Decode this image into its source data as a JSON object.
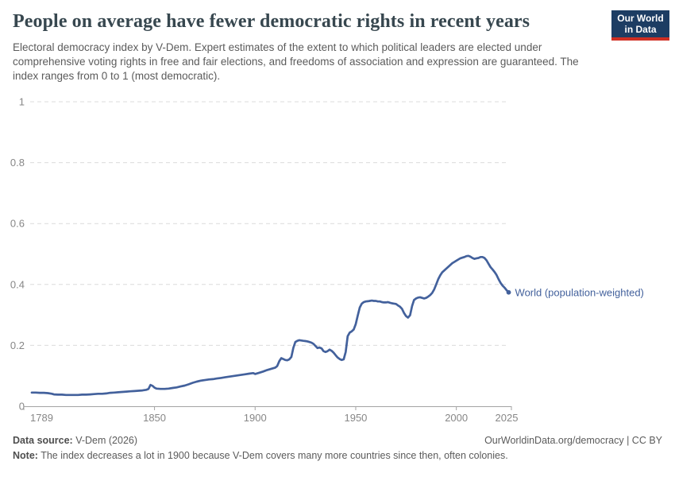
{
  "header": {
    "title": "People on average have fewer democratic rights in recent years",
    "subtitle": "Electoral democracy index by V-Dem. Expert estimates of the extent to which political leaders are elected under comprehensive voting rights in free and fair elections, and freedoms of association and expression are guaranteed. The index ranges from 0 to 1 (most democratic).",
    "logo": {
      "line1": "Our World",
      "line2": "in Data",
      "bg_color": "#1d3d63",
      "accent_color": "#cf2f23"
    }
  },
  "chart_data": {
    "type": "line",
    "title": "People on average have fewer democratic rights in recent years",
    "xlabel": "",
    "ylabel": "Electoral democracy index",
    "xlim": [
      1789,
      2026
    ],
    "ylim": [
      0,
      1
    ],
    "x_ticks": [
      1789,
      1850,
      1900,
      1950,
      2000,
      2025
    ],
    "y_ticks": [
      0,
      0.2,
      0.4,
      0.6,
      0.8,
      1
    ],
    "grid": "horizontal-dashed",
    "legend_position": "end-of-line-label",
    "colors": {
      "line": "#43619c",
      "grid": "#dcdcdc",
      "axis": "#a3a3a3",
      "tick_label": "#878787"
    },
    "series": [
      {
        "name": "World (population-weighted)",
        "color": "#43619c",
        "points": [
          [
            1789,
            0.045
          ],
          [
            1791,
            0.045
          ],
          [
            1793,
            0.044
          ],
          [
            1795,
            0.044
          ],
          [
            1797,
            0.043
          ],
          [
            1799,
            0.041
          ],
          [
            1800,
            0.039
          ],
          [
            1802,
            0.038
          ],
          [
            1804,
            0.038
          ],
          [
            1806,
            0.037
          ],
          [
            1808,
            0.037
          ],
          [
            1810,
            0.037
          ],
          [
            1812,
            0.037
          ],
          [
            1814,
            0.038
          ],
          [
            1816,
            0.038
          ],
          [
            1818,
            0.039
          ],
          [
            1820,
            0.04
          ],
          [
            1822,
            0.041
          ],
          [
            1824,
            0.041
          ],
          [
            1826,
            0.042
          ],
          [
            1828,
            0.044
          ],
          [
            1830,
            0.045
          ],
          [
            1832,
            0.046
          ],
          [
            1834,
            0.047
          ],
          [
            1836,
            0.048
          ],
          [
            1838,
            0.049
          ],
          [
            1840,
            0.05
          ],
          [
            1842,
            0.051
          ],
          [
            1844,
            0.052
          ],
          [
            1846,
            0.054
          ],
          [
            1847,
            0.057
          ],
          [
            1848,
            0.07
          ],
          [
            1849,
            0.067
          ],
          [
            1850,
            0.061
          ],
          [
            1851,
            0.058
          ],
          [
            1853,
            0.057
          ],
          [
            1855,
            0.057
          ],
          [
            1857,
            0.058
          ],
          [
            1859,
            0.06
          ],
          [
            1861,
            0.062
          ],
          [
            1863,
            0.065
          ],
          [
            1865,
            0.068
          ],
          [
            1867,
            0.072
          ],
          [
            1869,
            0.077
          ],
          [
            1871,
            0.081
          ],
          [
            1873,
            0.084
          ],
          [
            1875,
            0.086
          ],
          [
            1877,
            0.088
          ],
          [
            1879,
            0.089
          ],
          [
            1881,
            0.091
          ],
          [
            1883,
            0.093
          ],
          [
            1885,
            0.095
          ],
          [
            1887,
            0.097
          ],
          [
            1889,
            0.099
          ],
          [
            1891,
            0.101
          ],
          [
            1893,
            0.103
          ],
          [
            1895,
            0.105
          ],
          [
            1897,
            0.107
          ],
          [
            1899,
            0.109
          ],
          [
            1900,
            0.106
          ],
          [
            1902,
            0.11
          ],
          [
            1904,
            0.114
          ],
          [
            1906,
            0.119
          ],
          [
            1908,
            0.123
          ],
          [
            1910,
            0.127
          ],
          [
            1911,
            0.132
          ],
          [
            1912,
            0.148
          ],
          [
            1913,
            0.158
          ],
          [
            1914,
            0.155
          ],
          [
            1915,
            0.152
          ],
          [
            1916,
            0.151
          ],
          [
            1917,
            0.154
          ],
          [
            1918,
            0.162
          ],
          [
            1919,
            0.192
          ],
          [
            1920,
            0.211
          ],
          [
            1921,
            0.215
          ],
          [
            1922,
            0.217
          ],
          [
            1923,
            0.216
          ],
          [
            1924,
            0.215
          ],
          [
            1925,
            0.214
          ],
          [
            1926,
            0.213
          ],
          [
            1927,
            0.211
          ],
          [
            1928,
            0.209
          ],
          [
            1929,
            0.205
          ],
          [
            1930,
            0.198
          ],
          [
            1931,
            0.191
          ],
          [
            1932,
            0.193
          ],
          [
            1933,
            0.19
          ],
          [
            1934,
            0.181
          ],
          [
            1935,
            0.178
          ],
          [
            1936,
            0.181
          ],
          [
            1937,
            0.186
          ],
          [
            1938,
            0.182
          ],
          [
            1939,
            0.176
          ],
          [
            1940,
            0.168
          ],
          [
            1941,
            0.16
          ],
          [
            1942,
            0.155
          ],
          [
            1943,
            0.152
          ],
          [
            1944,
            0.154
          ],
          [
            1945,
            0.178
          ],
          [
            1946,
            0.23
          ],
          [
            1947,
            0.242
          ],
          [
            1948,
            0.246
          ],
          [
            1949,
            0.252
          ],
          [
            1950,
            0.27
          ],
          [
            1951,
            0.298
          ],
          [
            1952,
            0.324
          ],
          [
            1953,
            0.337
          ],
          [
            1954,
            0.342
          ],
          [
            1955,
            0.344
          ],
          [
            1956,
            0.345
          ],
          [
            1957,
            0.346
          ],
          [
            1958,
            0.347
          ],
          [
            1959,
            0.346
          ],
          [
            1960,
            0.346
          ],
          [
            1961,
            0.344
          ],
          [
            1962,
            0.344
          ],
          [
            1963,
            0.342
          ],
          [
            1964,
            0.341
          ],
          [
            1965,
            0.341
          ],
          [
            1966,
            0.342
          ],
          [
            1967,
            0.34
          ],
          [
            1968,
            0.338
          ],
          [
            1969,
            0.337
          ],
          [
            1970,
            0.336
          ],
          [
            1971,
            0.331
          ],
          [
            1972,
            0.327
          ],
          [
            1973,
            0.32
          ],
          [
            1974,
            0.306
          ],
          [
            1975,
            0.296
          ],
          [
            1976,
            0.291
          ],
          [
            1977,
            0.299
          ],
          [
            1978,
            0.329
          ],
          [
            1979,
            0.349
          ],
          [
            1980,
            0.354
          ],
          [
            1981,
            0.357
          ],
          [
            1982,
            0.358
          ],
          [
            1983,
            0.356
          ],
          [
            1984,
            0.354
          ],
          [
            1985,
            0.356
          ],
          [
            1986,
            0.36
          ],
          [
            1987,
            0.365
          ],
          [
            1988,
            0.372
          ],
          [
            1989,
            0.384
          ],
          [
            1990,
            0.4
          ],
          [
            1991,
            0.417
          ],
          [
            1992,
            0.43
          ],
          [
            1993,
            0.44
          ],
          [
            1994,
            0.446
          ],
          [
            1995,
            0.452
          ],
          [
            1996,
            0.458
          ],
          [
            1997,
            0.464
          ],
          [
            1998,
            0.47
          ],
          [
            1999,
            0.474
          ],
          [
            2000,
            0.478
          ],
          [
            2001,
            0.482
          ],
          [
            2002,
            0.486
          ],
          [
            2003,
            0.488
          ],
          [
            2004,
            0.49
          ],
          [
            2005,
            0.493
          ],
          [
            2006,
            0.494
          ],
          [
            2007,
            0.491
          ],
          [
            2008,
            0.487
          ],
          [
            2009,
            0.484
          ],
          [
            2010,
            0.486
          ],
          [
            2011,
            0.487
          ],
          [
            2012,
            0.49
          ],
          [
            2013,
            0.49
          ],
          [
            2014,
            0.487
          ],
          [
            2015,
            0.479
          ],
          [
            2016,
            0.468
          ],
          [
            2017,
            0.457
          ],
          [
            2018,
            0.449
          ],
          [
            2019,
            0.441
          ],
          [
            2020,
            0.431
          ],
          [
            2021,
            0.417
          ],
          [
            2022,
            0.405
          ],
          [
            2023,
            0.396
          ],
          [
            2024,
            0.389
          ],
          [
            2025,
            0.381
          ],
          [
            2026,
            0.374
          ]
        ]
      }
    ]
  },
  "footer": {
    "source_label": "Data source:",
    "source_text": " V-Dem (2026)",
    "rights_text": "OurWorldinData.org/democracy | CC BY",
    "note_label": "Note:",
    "note_text": " The index decreases a lot in 1900 because V-Dem covers many more countries since then, often colonies."
  }
}
